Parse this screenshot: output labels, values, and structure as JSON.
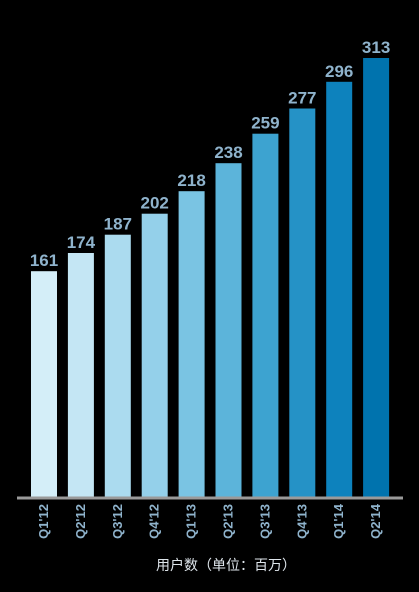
{
  "chart_data": {
    "type": "bar",
    "categories": [
      "Q1'12",
      "Q2'12",
      "Q3'12",
      "Q4'12",
      "Q1'13",
      "Q2'13",
      "Q3'13",
      "Q4'13",
      "Q1'14",
      "Q2'14"
    ],
    "values": [
      161,
      174,
      187,
      202,
      218,
      238,
      259,
      277,
      296,
      313
    ],
    "xlabel": "用户数（单位：百万）",
    "ylabel": "",
    "title": "",
    "grid": false,
    "legend": "none",
    "bar_colors": [
      "#d4eef8",
      "#c4e6f4",
      "#abdbef",
      "#94d0ea",
      "#7ac4e3",
      "#5cb4da",
      "#3da3d0",
      "#2592c6",
      "#0d82bd",
      "#0073ae"
    ],
    "value_label_color": "#8fb3cc",
    "axis_line_color": "#9a9a9a",
    "background": "#000000"
  }
}
